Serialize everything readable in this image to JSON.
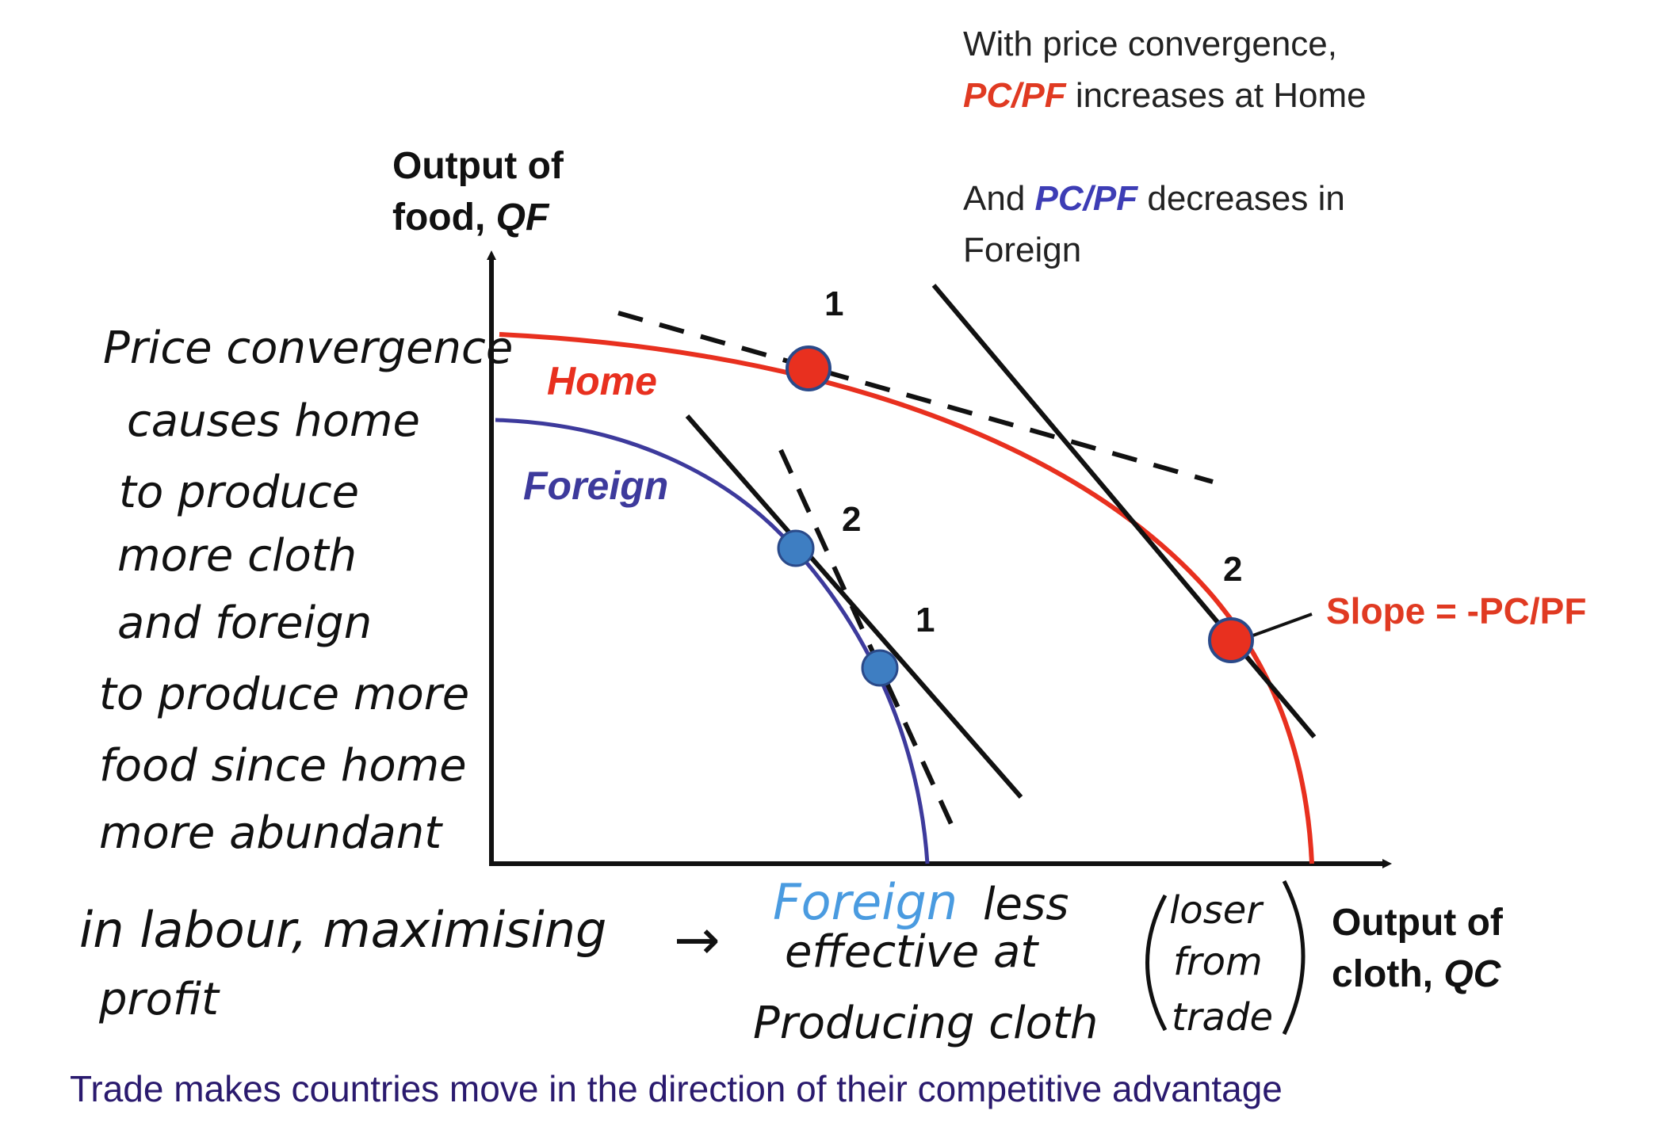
{
  "colors": {
    "home": "#e8301f",
    "foreign": "#3d3a9c",
    "foreign_point": "#3e7ec2",
    "highlight_red": "#e03a22",
    "highlight_blue": "#3d3db5",
    "handwriting_blue": "#4a9be0",
    "footer": "#2a1a6e",
    "ink": "#111111"
  },
  "axes": {
    "y_label_line1": "Output of",
    "y_label_line2_prefix": "food,",
    "y_label_line2_var": "QF",
    "x_label_line1": "Output of",
    "x_label_line2_prefix": "cloth,",
    "x_label_line2_var": "QC"
  },
  "curves": {
    "home_label": "Home",
    "foreign_label": "Foreign"
  },
  "points": {
    "home_1": "1",
    "home_2": "2",
    "foreign_1": "1",
    "foreign_2": "2"
  },
  "annotations": {
    "top_line1": "With price convergence,",
    "top_line2_ratio": "PC/PF",
    "top_line2_rest": "increases at Home",
    "top_line3_prefix": "And",
    "top_line3_ratio": "PC/PF",
    "top_line3_rest": "decreases in",
    "top_line4": "Foreign",
    "slope_label": "Slope = -PC/PF"
  },
  "handwriting": {
    "left_lines": [
      "Price convergence",
      "causes home",
      "to produce",
      "more cloth",
      "and foreign",
      "to produce more",
      "food since home",
      "more abundant"
    ],
    "bottom_line1": "in labour, maximising",
    "bottom_line2": "profit",
    "arrow": "→",
    "middle_foreign": "Foreign",
    "middle_rest_line1": "less",
    "middle_line2": "effective at",
    "middle_line3": "Producing cloth",
    "bracket_line1": "loser",
    "bracket_line2": "from",
    "bracket_line3": "trade"
  },
  "footer": {
    "text": "Trade makes countries move in the direction of their competitive advantage"
  }
}
